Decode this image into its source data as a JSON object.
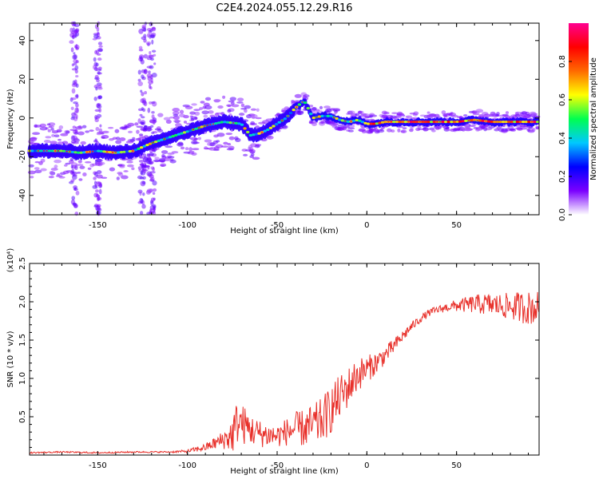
{
  "title": "C2E4.2024.055.12.29.R16",
  "chart_data": [
    {
      "type": "heatmap",
      "xlabel": "Height of straight line (km)",
      "ylabel": "Frequency (Hz)",
      "xlim": [
        -188,
        96
      ],
      "ylim": [
        -50,
        49
      ],
      "xticks": [
        -150,
        -100,
        -50,
        0,
        50
      ],
      "yticks": [
        -40,
        -20,
        0,
        20,
        40
      ],
      "colorbar": {
        "label": "Normalized spectral amplitude",
        "range": [
          0.0,
          1.0
        ],
        "ticks": [
          0.0,
          0.2,
          0.4,
          0.6,
          0.8
        ],
        "colors": [
          "#ffffff",
          "#7b00ff",
          "#0000ff",
          "#00c8ff",
          "#00ff50",
          "#ffff00",
          "#ff6a00",
          "#ff0000",
          "#ff0090"
        ]
      },
      "ridge": {
        "x": [
          -188,
          -170,
          -160,
          -150,
          -140,
          -130,
          -120,
          -110,
          -100,
          -90,
          -80,
          -70,
          -65,
          -60,
          -55,
          -50,
          -45,
          -40,
          -35,
          -30,
          -25,
          -20,
          -15,
          -10,
          -5,
          0,
          5,
          10,
          20,
          30,
          40,
          50,
          60,
          70,
          80,
          94
        ],
        "y": [
          -17,
          -17,
          -18,
          -17,
          -18,
          -17,
          -13,
          -10,
          -7,
          -4,
          -2,
          -3,
          -9,
          -8,
          -6,
          -3,
          0,
          5,
          9,
          0,
          1,
          1,
          -1,
          -2,
          -1,
          -3,
          -3,
          -2,
          -2,
          -2,
          -2,
          -2,
          -1,
          -2,
          -2,
          -2
        ]
      }
    },
    {
      "type": "line",
      "xlabel": "Height of straight line (km)",
      "ylabel": "SNR (10 * v/v)",
      "y_multiplier": "(x10⁴)",
      "xlim": [
        -188,
        96
      ],
      "ylim": [
        0,
        2.5
      ],
      "xticks": [
        -150,
        -100,
        -50,
        0,
        50
      ],
      "yticks": [
        0.5,
        1.0,
        1.5,
        2.0,
        2.5
      ],
      "ytick_labels": [
        "0.5",
        "1.0",
        "1.5",
        "2.0",
        "2.5"
      ],
      "series": [
        {
          "color": "#e8302a",
          "x": [
            -188,
            -170,
            -150,
            -130,
            -110,
            -100,
            -90,
            -85,
            -80,
            -75,
            -72,
            -68,
            -64,
            -60,
            -55,
            -50,
            -45,
            -40,
            -35,
            -30,
            -25,
            -20,
            -15,
            -10,
            -5,
            0,
            5,
            10,
            15,
            20,
            25,
            30,
            35,
            40,
            45,
            50,
            55,
            60,
            65,
            70,
            75,
            80,
            85,
            90,
            94
          ],
          "y": [
            0.03,
            0.04,
            0.03,
            0.04,
            0.04,
            0.05,
            0.1,
            0.15,
            0.2,
            0.26,
            0.45,
            0.38,
            0.32,
            0.28,
            0.26,
            0.25,
            0.3,
            0.34,
            0.35,
            0.38,
            0.45,
            0.6,
            0.75,
            0.9,
            1.05,
            1.12,
            1.2,
            1.3,
            1.42,
            1.55,
            1.68,
            1.78,
            1.86,
            1.9,
            1.93,
            1.95,
            1.96,
            1.97,
            1.97,
            1.96,
            1.95,
            1.94,
            1.93,
            1.92,
            1.92
          ],
          "noise_amplitude": [
            0.01,
            0.01,
            0.01,
            0.01,
            0.01,
            0.02,
            0.05,
            0.08,
            0.12,
            0.25,
            0.3,
            0.25,
            0.2,
            0.18,
            0.16,
            0.15,
            0.18,
            0.22,
            0.25,
            0.28,
            0.3,
            0.32,
            0.3,
            0.26,
            0.22,
            0.18,
            0.15,
            0.12,
            0.1,
            0.08,
            0.06,
            0.05,
            0.05,
            0.05,
            0.06,
            0.08,
            0.1,
            0.12,
            0.14,
            0.15,
            0.16,
            0.18,
            0.2,
            0.22,
            0.22
          ]
        }
      ]
    }
  ]
}
